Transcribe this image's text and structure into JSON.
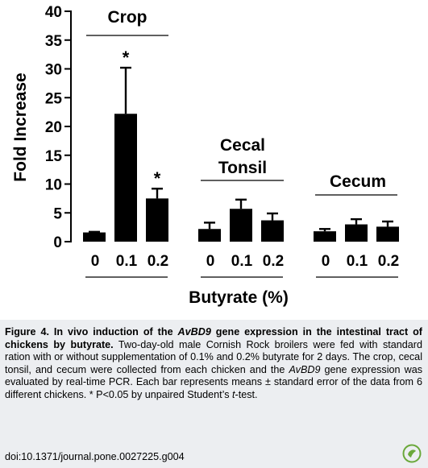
{
  "chart_data": {
    "type": "bar",
    "ylabel": "Fold Increase",
    "xlabel": "Butyrate (%)",
    "ylim": [
      0,
      40
    ],
    "yticks": [
      "0",
      "5",
      "10",
      "15",
      "20",
      "25",
      "30",
      "35",
      "40"
    ],
    "groups": [
      {
        "name": "Crop",
        "categories": [
          "0",
          "0.1",
          "0.2"
        ],
        "values": [
          1.6,
          22.2,
          7.5
        ],
        "errors": [
          0.1,
          8.0,
          1.7
        ],
        "significance": [
          "",
          "*",
          "*"
        ]
      },
      {
        "name": "Cecal Tonsil",
        "name_lines": [
          "Cecal",
          "Tonsil"
        ],
        "categories": [
          "0",
          "0.1",
          "0.2"
        ],
        "values": [
          2.2,
          5.7,
          3.7
        ],
        "errors": [
          1.1,
          1.6,
          1.2
        ],
        "significance": [
          "",
          "",
          ""
        ]
      },
      {
        "name": "Cecum",
        "categories": [
          "0",
          "0.1",
          "0.2"
        ],
        "values": [
          1.8,
          3.0,
          2.6
        ],
        "errors": [
          0.4,
          0.9,
          0.9
        ],
        "significance": [
          "",
          "",
          ""
        ]
      }
    ]
  },
  "caption": {
    "title_pre": "Figure 4. In vivo induction of the ",
    "title_gene": "AvBD9",
    "title_post": " gene expression in the intestinal tract of chickens by butyrate.",
    "body_1": " Two-day-old male Cornish Rock broilers were fed with standard ration with or without supplementation of 0.1% and 0.2% butyrate for 2 days. The crop, cecal tonsil, and cecum were collected from each chicken and the ",
    "body_gene": "AvBD9",
    "body_2": " gene expression was evaluated by real-time PCR. Each bar represents means ± standard error of the data from 6 different chickens. * P<0.05 by unpaired Student’s ",
    "body_t": "t",
    "body_3": "-test.",
    "doi": "doi:10.1371/journal.pone.0027225.g004"
  }
}
